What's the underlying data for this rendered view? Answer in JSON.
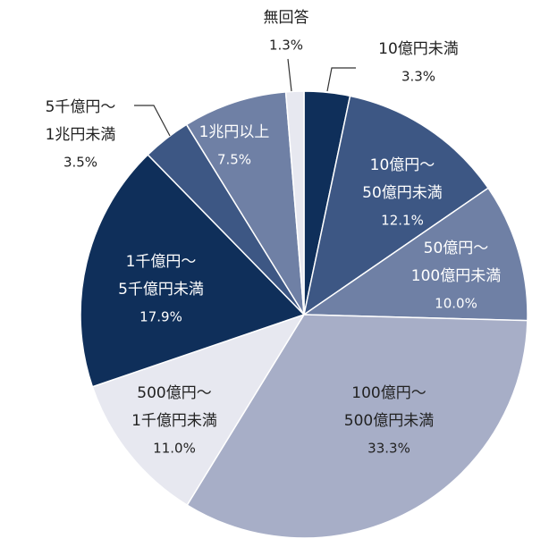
{
  "chart_data": {
    "type": "pie",
    "categories": [
      [
        "10億円未満"
      ],
      [
        "10億円～",
        "50億円未満"
      ],
      [
        "50億円～",
        "100億円未満"
      ],
      [
        "100億円～",
        "500億円未満"
      ],
      [
        "500億円～",
        "1千億円未満"
      ],
      [
        "1千億円～",
        "5千億円未満"
      ],
      [
        "5千億円～",
        "1兆円未満"
      ],
      [
        "1兆円以上"
      ],
      [
        "無回答"
      ]
    ],
    "values": [
      3.3,
      12.1,
      10.0,
      33.3,
      11.0,
      17.9,
      3.5,
      7.5,
      1.3
    ],
    "value_labels": [
      "3.3%",
      "12.1%",
      "10.0%",
      "33.3%",
      "11.0%",
      "17.9%",
      "3.5%",
      "7.5%",
      "1.3%"
    ],
    "colors": [
      "#0f2f5a",
      "#3d5784",
      "#6f80a5",
      "#a7aec7",
      "#e7e8f0",
      "#0f2f5a",
      "#3d5784",
      "#6f80a5",
      "#e7e8f0"
    ]
  }
}
